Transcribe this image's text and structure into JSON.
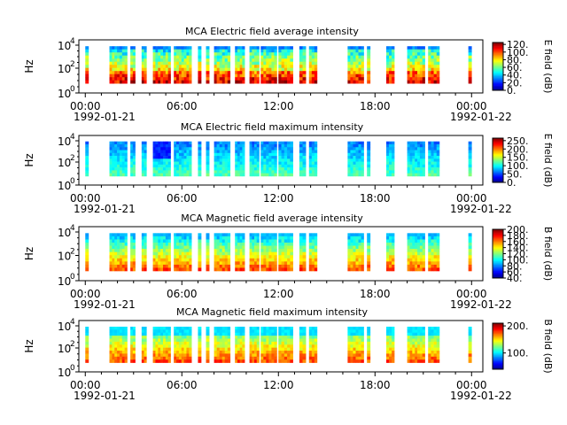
{
  "chart_data": [
    {
      "type": "heatmap",
      "title": "MCA  Electric field average intensity",
      "ylabel": "Hz",
      "cbar_label": "E field (dB)",
      "cbar_range": [
        0,
        125
      ],
      "cbar_ticks": [
        "0.",
        "20.",
        "40.",
        "60.",
        "80.",
        "100.",
        "120."
      ],
      "mode": "e_avg"
    },
    {
      "type": "heatmap",
      "title": "MCA  Electric field maximum intensity",
      "ylabel": "Hz",
      "cbar_label": "E field (dB)",
      "cbar_range": [
        0,
        265
      ],
      "cbar_ticks": [
        "0.",
        "50.",
        "100.",
        "150.",
        "200.",
        "250."
      ],
      "mode": "e_max"
    },
    {
      "type": "heatmap",
      "title": "MCA  Magnetic field average intensity",
      "ylabel": "Hz",
      "cbar_label": "B field (dB)",
      "cbar_range": [
        40,
        200
      ],
      "cbar_ticks": [
        "40.",
        "60.",
        "80.",
        "100.",
        "120.",
        "140.",
        "160.",
        "180.",
        "200."
      ],
      "mode": "b_avg"
    },
    {
      "type": "heatmap",
      "title": "MCA  Magnetic field maximum intensity",
      "ylabel": "Hz",
      "cbar_label": "B field (dB)",
      "cbar_range": [
        40,
        210
      ],
      "cbar_ticks": [
        "100.",
        "200."
      ],
      "mode": "b_max"
    }
  ],
  "axes": {
    "y_ticks": [
      "10",
      "10",
      "10"
    ],
    "y_exps": [
      "0",
      "2",
      "4"
    ],
    "x_ticks": [
      "00:00",
      "06:00",
      "12:00",
      "18:00",
      "00:00"
    ],
    "start_date": "1992-01-21",
    "end_date": "1992-01-22"
  },
  "data_segments_hours": [
    [
      0.0,
      0.2
    ],
    [
      1.5,
      2.6
    ],
    [
      2.8,
      3.1
    ],
    [
      3.5,
      3.8
    ],
    [
      4.2,
      5.3
    ],
    [
      5.5,
      6.6
    ],
    [
      7.0,
      7.2
    ],
    [
      7.5,
      7.7
    ],
    [
      8.0,
      9.0
    ],
    [
      9.3,
      9.9
    ],
    [
      10.2,
      10.8
    ],
    [
      10.9,
      11.9
    ],
    [
      12.0,
      12.9
    ],
    [
      13.3,
      13.7
    ],
    [
      13.9,
      14.4
    ],
    [
      16.3,
      17.3
    ],
    [
      17.5,
      17.7
    ],
    [
      18.7,
      19.2
    ],
    [
      20.0,
      21.1
    ],
    [
      21.3,
      22.0
    ],
    [
      23.8,
      24.0
    ]
  ]
}
